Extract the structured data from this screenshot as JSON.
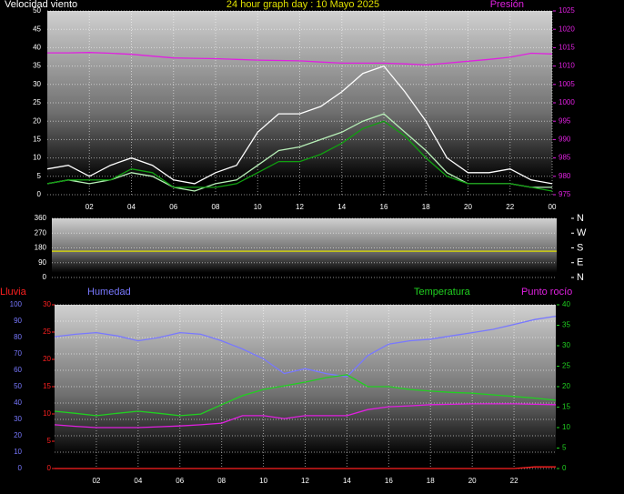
{
  "chart_data": [
    {
      "type": "line",
      "title": "24 hour graph day : 10 Mayo 2025",
      "y_label": "Velocidad viento",
      "y2_label": "Presión",
      "x": [
        0,
        1,
        2,
        3,
        4,
        5,
        6,
        7,
        8,
        9,
        10,
        11,
        12,
        13,
        14,
        15,
        16,
        17,
        18,
        19,
        20,
        21,
        22,
        23,
        24
      ],
      "xlim": [
        0,
        24
      ],
      "xticks": [
        {
          "value": 2,
          "label": "02"
        },
        {
          "value": 4,
          "label": "04"
        },
        {
          "value": 6,
          "label": "06"
        },
        {
          "value": 8,
          "label": "08"
        },
        10,
        12,
        14,
        16,
        18,
        20,
        22,
        {
          "value": 24,
          "label": "00"
        }
      ],
      "ylim": [
        0,
        50
      ],
      "yticks": [
        0,
        5,
        10,
        15,
        20,
        25,
        30,
        35,
        40,
        45,
        50
      ],
      "y2lim": [
        975,
        1025
      ],
      "y2ticks": [
        975,
        980,
        985,
        990,
        995,
        1000,
        1005,
        1010,
        1015,
        1020,
        1025
      ],
      "grid": true,
      "series": [
        {
          "color": "#ffffff",
          "values": [
            7,
            8,
            5,
            8,
            10,
            8,
            4,
            3,
            6,
            8,
            17,
            22,
            22,
            24,
            28,
            33,
            35,
            28,
            20,
            10,
            6,
            6,
            7,
            4,
            3
          ]
        },
        {
          "color": "#b8f0b8",
          "values": [
            3,
            4,
            3,
            4,
            6,
            5,
            2,
            1,
            3,
            4,
            8,
            12,
            13,
            15,
            17,
            20,
            22,
            17,
            12,
            6,
            3,
            3,
            3,
            2,
            2
          ]
        },
        {
          "color": "#10a010",
          "values": [
            3,
            4,
            4,
            4,
            7,
            6,
            2,
            2,
            2,
            3,
            6,
            9,
            9,
            11,
            14,
            18,
            20,
            16,
            10,
            5,
            3,
            3,
            3,
            2,
            1
          ]
        },
        {
          "color": "#e020e0",
          "axis": "y2",
          "values": [
            1013.6,
            1013.6,
            1013.7,
            1013.5,
            1013.2,
            1012.7,
            1012.2,
            1012.1,
            1012.0,
            1011.8,
            1011.6,
            1011.5,
            1011.4,
            1011.1,
            1010.8,
            1010.8,
            1010.8,
            1010.6,
            1010.3,
            1010.8,
            1011.3,
            1011.8,
            1012.4,
            1013.5,
            1013.3
          ]
        }
      ]
    },
    {
      "type": "line",
      "x": [
        0,
        1,
        2,
        3,
        4,
        5,
        6,
        7,
        8,
        9,
        10,
        11,
        12,
        13,
        14,
        15,
        16,
        17,
        18,
        19,
        20,
        21,
        22,
        23,
        24
      ],
      "xlim": [
        0,
        24
      ],
      "ylim": [
        0,
        360
      ],
      "yticks": [
        0,
        90,
        180,
        270,
        360
      ],
      "y2lim": [
        0,
        360
      ],
      "y2ticks": [
        {
          "value": 360,
          "label": "N"
        },
        {
          "value": 270,
          "label": "W"
        },
        {
          "value": 180,
          "label": "S"
        },
        {
          "value": 90,
          "label": "E"
        },
        {
          "value": 0,
          "label": "N"
        }
      ],
      "grid": true,
      "series": [
        {
          "color": "#e0e000",
          "values": [
            160,
            160,
            160,
            160,
            160,
            160,
            160,
            160,
            160,
            160,
            160,
            160,
            160,
            160,
            160,
            160,
            160,
            160,
            160,
            160,
            160,
            160,
            160,
            160,
            160
          ]
        }
      ]
    },
    {
      "type": "line",
      "x": [
        0,
        1,
        2,
        3,
        4,
        5,
        6,
        7,
        8,
        9,
        10,
        11,
        12,
        13,
        14,
        15,
        16,
        17,
        18,
        19,
        20,
        21,
        22,
        23,
        24
      ],
      "xlim": [
        0,
        24
      ],
      "xticks": [
        {
          "value": 2,
          "label": "02"
        },
        {
          "value": 4,
          "label": "04"
        },
        {
          "value": 6,
          "label": "06"
        },
        {
          "value": 8,
          "label": "08"
        },
        10,
        12,
        14,
        16,
        18,
        20,
        22
      ],
      "ylim": [
        0,
        100
      ],
      "yticks": [
        0,
        10,
        20,
        30,
        40,
        50,
        60,
        70,
        80,
        90,
        100
      ],
      "y2lim": [
        0,
        40
      ],
      "y2ticks": [
        0,
        5,
        10,
        15,
        20,
        25,
        30,
        35,
        40
      ],
      "y3lim": [
        0,
        30
      ],
      "y3ticks": [
        0,
        5,
        10,
        15,
        20,
        25,
        30
      ],
      "grid": true,
      "series": [
        {
          "name": "Humedad",
          "color": "#7878ff",
          "values": [
            80.5,
            82,
            83,
            81,
            78,
            80,
            83,
            82,
            78,
            73,
            67,
            58,
            61,
            58,
            56,
            69,
            76,
            78,
            79,
            81,
            83,
            85,
            88,
            91,
            93
          ]
        },
        {
          "name": "Temperatura",
          "color": "#20d020",
          "axis": "y2",
          "values": [
            14,
            13.5,
            12.9,
            13.5,
            14,
            13.5,
            12.9,
            13.3,
            15.6,
            17.8,
            19.3,
            20.2,
            21.1,
            22.2,
            22.9,
            20,
            20,
            19.3,
            18.9,
            18.6,
            18.4,
            18,
            17.6,
            17.2,
            16.7
          ]
        },
        {
          "name": "Punto rocío",
          "color": "#e020e0",
          "axis": "y2",
          "values": [
            10.7,
            10.3,
            10,
            10,
            10,
            10.2,
            10.4,
            10.7,
            11.1,
            12.9,
            12.9,
            12.2,
            12.9,
            12.9,
            12.9,
            14.4,
            15.1,
            15.3,
            15.6,
            15.7,
            15.8,
            15.8,
            15.8,
            15.7,
            15.6
          ]
        },
        {
          "name": "Lluvia",
          "color": "#ff2020",
          "axis": "y3",
          "values": [
            0,
            0,
            0,
            0,
            0,
            0,
            0,
            0,
            0,
            0,
            0,
            0,
            0,
            0,
            0,
            0,
            0,
            0,
            0,
            0,
            0,
            0,
            0,
            0.3,
            0.3
          ]
        }
      ]
    }
  ]
}
